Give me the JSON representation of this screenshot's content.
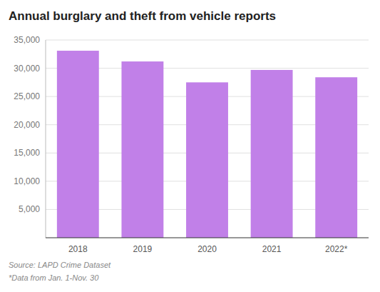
{
  "chart_data": {
    "type": "bar",
    "title": "Annual burglary and theft from vehicle reports",
    "categories": [
      "2018",
      "2019",
      "2020",
      "2021",
      "2022*"
    ],
    "values": [
      33100,
      31200,
      27500,
      29700,
      28400
    ],
    "color": "#c180e8",
    "ylim": [
      0,
      35000
    ],
    "yticks": [
      {
        "value": 5000,
        "label": "5,000"
      },
      {
        "value": 10000,
        "label": "10,000"
      },
      {
        "value": 15000,
        "label": "15,000"
      },
      {
        "value": 20000,
        "label": "20,000"
      },
      {
        "value": 25000,
        "label": "25,000"
      },
      {
        "value": 30000,
        "label": "30,000"
      },
      {
        "value": 35000,
        "label": "35,000"
      }
    ],
    "grid": true,
    "annotations": [
      "Source: LAPD Crime Dataset",
      "*Data from Jan. 1-Nov. 30"
    ]
  }
}
